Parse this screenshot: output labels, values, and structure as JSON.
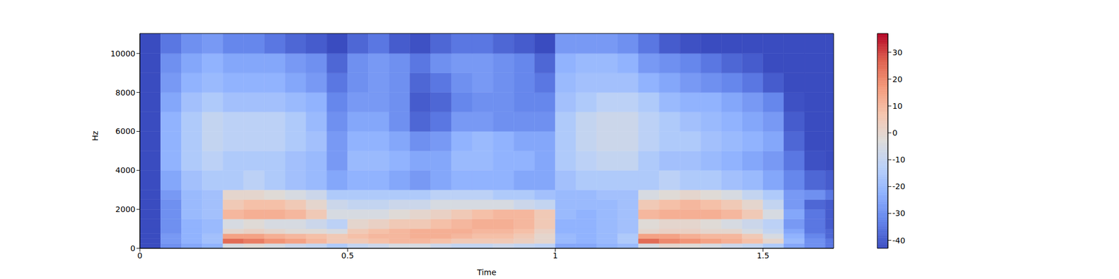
{
  "chart_data": {
    "type": "heatmap",
    "xlabel": "Time",
    "ylabel": "Hz",
    "color": "coolwarm",
    "xlim": [
      0,
      1.67
    ],
    "ylim": [
      0,
      11025
    ],
    "xticks": [
      0,
      0.5,
      1,
      1.5
    ],
    "yticks": [
      0,
      2000,
      4000,
      6000,
      8000,
      10000
    ],
    "x_bins": [
      0,
      0.05,
      0.1,
      0.15,
      0.2,
      0.25,
      0.3,
      0.35,
      0.4,
      0.45,
      0.5,
      0.55,
      0.6,
      0.65,
      0.7,
      0.75,
      0.8,
      0.85,
      0.9,
      0.95,
      1.0,
      1.05,
      1.1,
      1.15,
      1.2,
      1.25,
      1.3,
      1.35,
      1.4,
      1.45,
      1.5,
      1.55,
      1.6,
      1.65,
      1.67
    ],
    "y_bins": [
      0,
      250,
      500,
      750,
      1000,
      1500,
      2000,
      2500,
      3000,
      4000,
      5000,
      6000,
      7000,
      8000,
      9000,
      10000,
      11025
    ],
    "values": [
      [
        -43,
        -30,
        -25,
        -22,
        -5,
        -2,
        -5,
        -8,
        -10,
        -15,
        -10,
        -8,
        -5,
        -5,
        -8,
        -10,
        -10,
        -8,
        -10,
        -12,
        -25,
        -25,
        -22,
        -20,
        -5,
        0,
        -2,
        -5,
        -8,
        -10,
        -15,
        -25,
        -30,
        -35
      ],
      [
        -43,
        -28,
        -22,
        -18,
        25,
        22,
        18,
        15,
        10,
        5,
        5,
        8,
        10,
        10,
        8,
        5,
        5,
        5,
        3,
        0,
        -20,
        -22,
        -20,
        -15,
        25,
        20,
        18,
        15,
        12,
        8,
        0,
        -20,
        -30,
        -35
      ],
      [
        -43,
        -28,
        -22,
        -18,
        15,
        15,
        12,
        10,
        8,
        5,
        8,
        10,
        10,
        12,
        12,
        10,
        8,
        8,
        5,
        0,
        -20,
        -22,
        -20,
        -15,
        15,
        15,
        12,
        10,
        10,
        5,
        -5,
        -22,
        -32,
        -38
      ],
      [
        -43,
        -30,
        -22,
        -20,
        0,
        2,
        0,
        -2,
        -2,
        -5,
        5,
        8,
        10,
        12,
        12,
        12,
        10,
        10,
        8,
        2,
        -22,
        -22,
        -20,
        -18,
        0,
        2,
        2,
        0,
        0,
        -5,
        -10,
        -25,
        -35,
        -38
      ],
      [
        -43,
        -30,
        -22,
        -20,
        -5,
        -2,
        -5,
        -5,
        -8,
        -12,
        0,
        2,
        5,
        5,
        8,
        10,
        12,
        12,
        10,
        5,
        -22,
        -22,
        -20,
        -18,
        -2,
        0,
        0,
        -2,
        -5,
        -8,
        -12,
        -28,
        -35,
        -40
      ],
      [
        -43,
        -30,
        -20,
        -18,
        10,
        12,
        12,
        10,
        5,
        -5,
        -5,
        -5,
        -2,
        0,
        2,
        5,
        8,
        10,
        10,
        5,
        -20,
        -22,
        -20,
        -18,
        10,
        12,
        12,
        12,
        10,
        5,
        -5,
        -25,
        -35,
        -40
      ],
      [
        -43,
        -30,
        -20,
        -18,
        5,
        8,
        8,
        5,
        0,
        -8,
        -10,
        -10,
        -8,
        -8,
        -5,
        -5,
        -5,
        -5,
        -8,
        -10,
        -20,
        -20,
        -20,
        -18,
        5,
        8,
        10,
        8,
        5,
        0,
        -10,
        -28,
        -38,
        -40
      ],
      [
        -43,
        -28,
        -20,
        -18,
        0,
        0,
        -2,
        -5,
        -8,
        -15,
        -15,
        -15,
        -15,
        -15,
        -12,
        -12,
        -12,
        -15,
        -15,
        -18,
        -20,
        -20,
        -18,
        -18,
        -5,
        -2,
        0,
        -2,
        -5,
        -10,
        -15,
        -28,
        -30,
        -35
      ],
      [
        -43,
        -25,
        -18,
        -15,
        -15,
        -12,
        -15,
        -18,
        -20,
        -25,
        -22,
        -22,
        -25,
        -28,
        -25,
        -22,
        -22,
        -22,
        -25,
        -25,
        -18,
        -15,
        -15,
        -15,
        -15,
        -12,
        -15,
        -15,
        -18,
        -20,
        -25,
        -32,
        -38,
        -40
      ],
      [
        -43,
        -22,
        -15,
        -12,
        -15,
        -15,
        -15,
        -18,
        -20,
        -28,
        -20,
        -20,
        -22,
        -25,
        -25,
        -20,
        -20,
        -22,
        -22,
        -25,
        -15,
        -12,
        -10,
        -10,
        -15,
        -18,
        -18,
        -20,
        -22,
        -25,
        -28,
        -35,
        -42,
        -43
      ],
      [
        -43,
        -22,
        -15,
        -10,
        -12,
        -12,
        -12,
        -15,
        -18,
        -28,
        -22,
        -22,
        -25,
        -30,
        -28,
        -22,
        -20,
        -22,
        -25,
        -25,
        -15,
        -10,
        -8,
        -8,
        -12,
        -15,
        -15,
        -18,
        -20,
        -22,
        -25,
        -38,
        -43,
        -43
      ],
      [
        -43,
        -22,
        -15,
        -10,
        -12,
        -12,
        -12,
        -15,
        -20,
        -30,
        -25,
        -25,
        -30,
        -38,
        -35,
        -28,
        -28,
        -30,
        -30,
        -30,
        -15,
        -10,
        -8,
        -8,
        -12,
        -15,
        -18,
        -20,
        -22,
        -25,
        -28,
        -40,
        -43,
        -43
      ],
      [
        -43,
        -25,
        -18,
        -15,
        -18,
        -18,
        -18,
        -20,
        -22,
        -32,
        -28,
        -28,
        -30,
        -40,
        -38,
        -32,
        -30,
        -30,
        -32,
        -32,
        -18,
        -15,
        -12,
        -12,
        -15,
        -20,
        -22,
        -22,
        -25,
        -28,
        -32,
        -42,
        -43,
        -43
      ],
      [
        -43,
        -28,
        -22,
        -20,
        -22,
        -22,
        -22,
        -25,
        -28,
        -35,
        -30,
        -28,
        -30,
        -38,
        -35,
        -30,
        -28,
        -30,
        -32,
        -35,
        -20,
        -18,
        -18,
        -18,
        -22,
        -25,
        -28,
        -30,
        -32,
        -35,
        -40,
        -43,
        -43,
        -43
      ],
      [
        -43,
        -30,
        -25,
        -22,
        -25,
        -25,
        -25,
        -28,
        -30,
        -38,
        -30,
        -28,
        -30,
        -35,
        -30,
        -28,
        -28,
        -30,
        -32,
        -38,
        -22,
        -20,
        -20,
        -22,
        -28,
        -30,
        -32,
        -35,
        -38,
        -40,
        -43,
        -43,
        -43,
        -43
      ],
      [
        -43,
        -35,
        -30,
        -28,
        -32,
        -32,
        -35,
        -38,
        -40,
        -43,
        -38,
        -35,
        -40,
        -42,
        -38,
        -35,
        -35,
        -38,
        -40,
        -43,
        -28,
        -28,
        -28,
        -30,
        -35,
        -40,
        -42,
        -43,
        -43,
        -43,
        -43,
        -43,
        -43,
        -43
      ]
    ],
    "colorbar": {
      "clim": [
        -43,
        37
      ],
      "ticks": [
        -40,
        -30,
        -20,
        -10,
        0,
        10,
        20,
        30
      ]
    }
  }
}
